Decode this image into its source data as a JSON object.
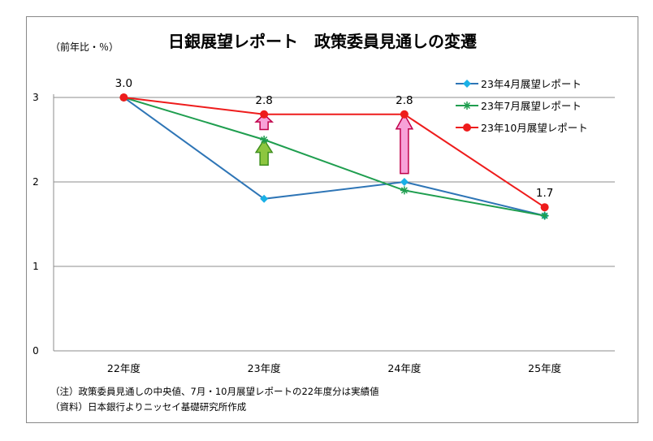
{
  "chart_data": {
    "type": "line",
    "title": "日銀展望レポート　政策委員見通しの変遷",
    "ylabel": "（前年比・％）",
    "xlabel": "",
    "categories": [
      "22年度",
      "23年度",
      "24年度",
      "25年度"
    ],
    "ylim": [
      0,
      3
    ],
    "yticks": [
      "0",
      "1",
      "2",
      "3"
    ],
    "grid": true,
    "legend_position": "top-right",
    "series": [
      {
        "name": "23年4月展望レポート",
        "values": [
          3.0,
          1.8,
          2.0,
          1.6
        ],
        "color": "#2e75b6",
        "marker": "diamond",
        "marker_color": "#1ab0e6"
      },
      {
        "name": "23年7月展望レポート",
        "values": [
          3.0,
          2.5,
          1.9,
          1.6
        ],
        "color": "#1f9e4f",
        "marker": "star",
        "marker_color": "#1f9e4f"
      },
      {
        "name": "23年10月展望レポート",
        "values": [
          3.0,
          2.8,
          2.8,
          1.7
        ],
        "color": "#ee1c1c",
        "marker": "circle",
        "marker_color": "#ee1c1c"
      }
    ],
    "data_labels": [
      {
        "category": "22年度",
        "value": 3.0,
        "text": "3.0"
      },
      {
        "category": "23年度",
        "value": 2.8,
        "text": "2.8"
      },
      {
        "category": "24年度",
        "value": 2.8,
        "text": "2.8"
      },
      {
        "category": "25年度",
        "value": 1.7,
        "text": "1.7"
      }
    ],
    "arrows": [
      {
        "category": "23年度",
        "from": 2.2,
        "to": 2.5,
        "color": "#8dc63f",
        "stroke": "#3f8f1f"
      },
      {
        "category": "23年度",
        "from": 2.62,
        "to": 2.8,
        "color": "#f7a1d8",
        "stroke": "#c0004a"
      },
      {
        "category": "24年度",
        "from": 2.1,
        "to": 2.8,
        "color": "#f7a1d8",
        "stroke": "#c0004a"
      }
    ],
    "notes": [
      "（注）政策委員見通しの中央値、7月・10月展望レポートの22年度分は実績値",
      "（資料）日本銀行よりニッセイ基礎研究所作成"
    ]
  }
}
